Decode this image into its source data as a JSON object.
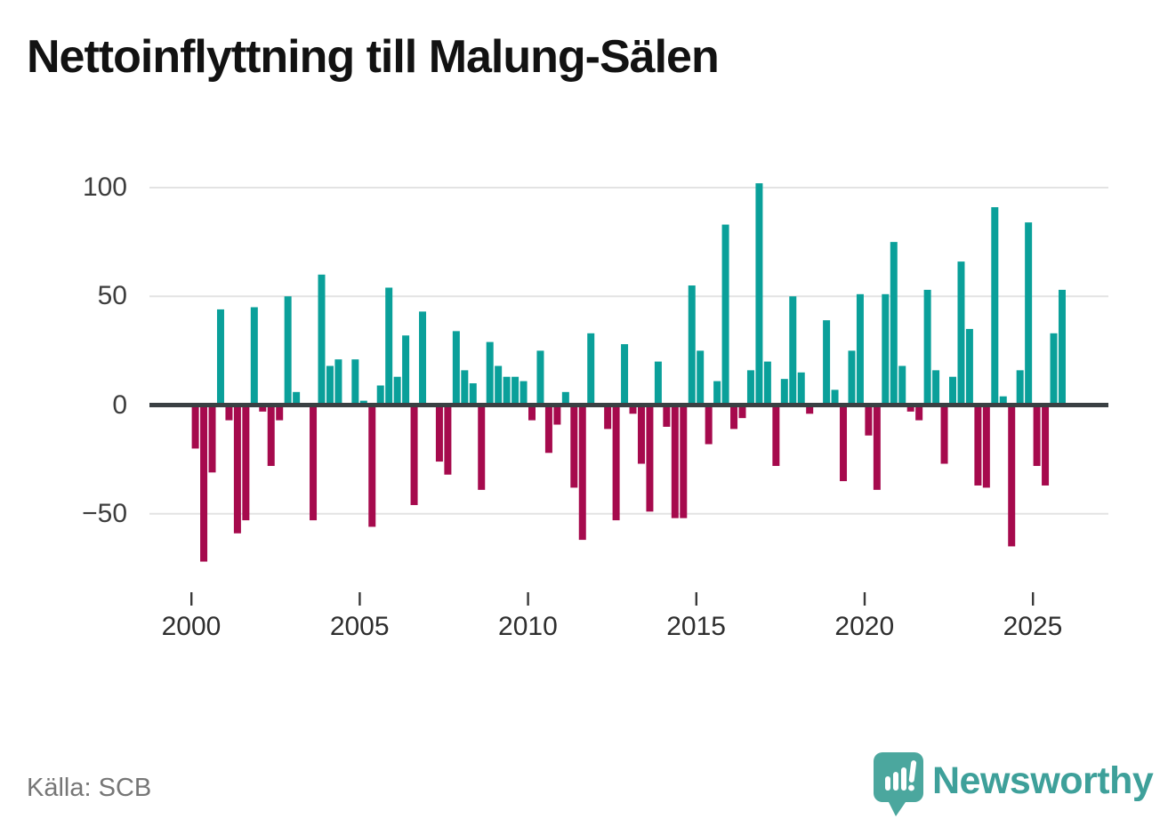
{
  "title": "Nettoinflyttning till Malung-Sälen",
  "source": "Källa: SCB",
  "branding": {
    "name": "Newsworthy",
    "icon": "speech-bubble-bar-chart-icon",
    "color": "#3EA09A",
    "icon_color": "#4BA79E"
  },
  "colors": {
    "positive": "#0AA09A",
    "negative": "#A60A4D",
    "zero_axis": "#3A4043",
    "gridline": "#E3E3E3",
    "tick": "#3A3A3A",
    "background": "#FFFFFF"
  },
  "chart_data": {
    "type": "bar",
    "title": "Nettoinflyttning till Malung-Sälen",
    "xlabel": "",
    "ylabel": "",
    "frequency": "quarterly",
    "start": "2000-Q1",
    "end": "2025-Q4",
    "grid": true,
    "legend": false,
    "ylim": [
      -80,
      110
    ],
    "positive_color": "#0AA09A",
    "negative_color": "#A60A4D",
    "yticks": [
      {
        "label": "100",
        "value": 100
      },
      {
        "label": "50",
        "value": 50
      },
      {
        "label": "0",
        "value": 0
      },
      {
        "label": "−50",
        "value": -50
      }
    ],
    "xticks": [
      {
        "label": "2000",
        "year": 2000
      },
      {
        "label": "2005",
        "year": 2005
      },
      {
        "label": "2010",
        "year": 2010
      },
      {
        "label": "2015",
        "year": 2015
      },
      {
        "label": "2020",
        "year": 2020
      },
      {
        "label": "2025",
        "year": 2025
      }
    ],
    "values_by_year": [
      {
        "year": 2000,
        "values": [
          -20,
          -72,
          -31,
          44
        ]
      },
      {
        "year": 2001,
        "values": [
          -7,
          -59,
          -53,
          45
        ]
      },
      {
        "year": 2002,
        "values": [
          -3,
          -28,
          -7,
          50
        ]
      },
      {
        "year": 2003,
        "values": [
          6,
          0,
          -53,
          60
        ]
      },
      {
        "year": 2004,
        "values": [
          18,
          21,
          0,
          21
        ]
      },
      {
        "year": 2005,
        "values": [
          2,
          -56,
          9,
          54
        ]
      },
      {
        "year": 2006,
        "values": [
          13,
          32,
          -46,
          43
        ]
      },
      {
        "year": 2007,
        "values": [
          0,
          -26,
          -32,
          34
        ]
      },
      {
        "year": 2008,
        "values": [
          16,
          10,
          -39,
          29
        ]
      },
      {
        "year": 2009,
        "values": [
          18,
          13,
          13,
          11
        ]
      },
      {
        "year": 2010,
        "values": [
          -7,
          25,
          -22,
          -9
        ]
      },
      {
        "year": 2011,
        "values": [
          6,
          -38,
          -62,
          33
        ]
      },
      {
        "year": 2012,
        "values": [
          0,
          -11,
          -53,
          28
        ]
      },
      {
        "year": 2013,
        "values": [
          -4,
          -27,
          -49,
          20
        ]
      },
      {
        "year": 2014,
        "values": [
          -10,
          -52,
          -52,
          55
        ]
      },
      {
        "year": 2015,
        "values": [
          25,
          -18,
          11,
          83
        ]
      },
      {
        "year": 2016,
        "values": [
          -11,
          -6,
          16,
          102
        ]
      },
      {
        "year": 2017,
        "values": [
          20,
          -28,
          12,
          50
        ]
      },
      {
        "year": 2018,
        "values": [
          15,
          -4,
          0,
          39
        ]
      },
      {
        "year": 2019,
        "values": [
          7,
          -35,
          25,
          51
        ]
      },
      {
        "year": 2020,
        "values": [
          -14,
          -39,
          51,
          75
        ]
      },
      {
        "year": 2021,
        "values": [
          18,
          -3,
          -7,
          53
        ]
      },
      {
        "year": 2022,
        "values": [
          16,
          -27,
          13,
          66
        ]
      },
      {
        "year": 2023,
        "values": [
          35,
          -37,
          -38,
          91
        ]
      },
      {
        "year": 2024,
        "values": [
          4,
          -65,
          16,
          84
        ]
      },
      {
        "year": 2025,
        "values": [
          -28,
          -37,
          33,
          53
        ]
      }
    ]
  }
}
